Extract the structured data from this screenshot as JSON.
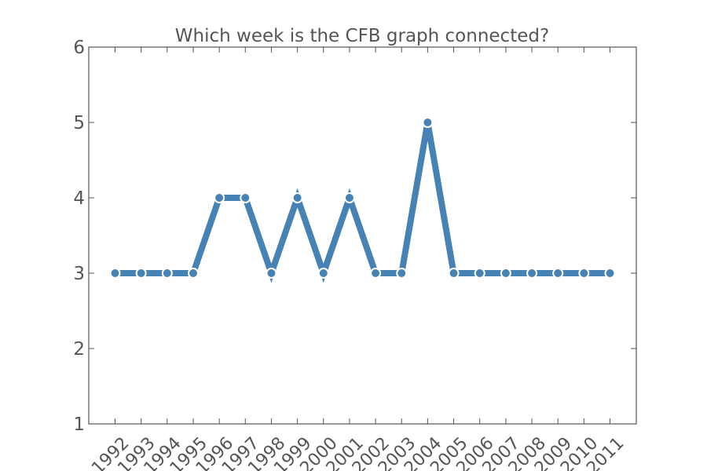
{
  "colors": {
    "series": "#4682b4",
    "axis": "#555555",
    "text": "#555555",
    "background": "#ffffff"
  },
  "chart_data": {
    "type": "line",
    "title": "Which week is the CFB graph connected?",
    "xlabel": "",
    "ylabel": "",
    "categories": [
      "1992",
      "1993",
      "1994",
      "1995",
      "1996",
      "1997",
      "1998",
      "1999",
      "2000",
      "2001",
      "2002",
      "2003",
      "2004",
      "2005",
      "2006",
      "2007",
      "2008",
      "2009",
      "2010",
      "2011"
    ],
    "series": [
      {
        "values": [
          3,
          3,
          3,
          3,
          4,
          4,
          3,
          4,
          3,
          4,
          3,
          3,
          5,
          3,
          3,
          3,
          3,
          3,
          3,
          3
        ]
      }
    ],
    "ylim": [
      1,
      6
    ],
    "yticks": [
      "1",
      "2",
      "3",
      "4",
      "5",
      "6"
    ],
    "grid": false,
    "markers": true
  }
}
